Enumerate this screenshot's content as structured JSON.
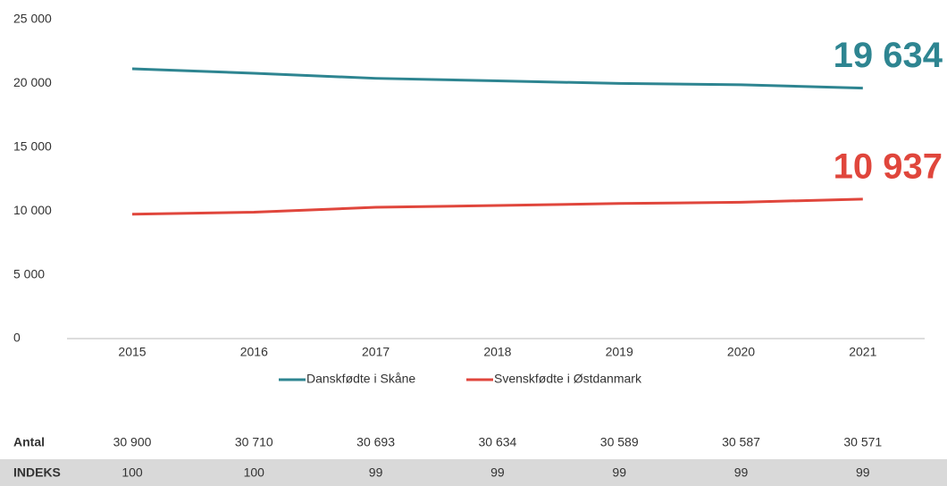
{
  "chart_data": {
    "type": "line",
    "categories": [
      "2015",
      "2016",
      "2017",
      "2018",
      "2019",
      "2020",
      "2021"
    ],
    "series": [
      {
        "name": "Danskfødte i Skåne",
        "color": "#2e8591",
        "values": [
          21150,
          20800,
          20400,
          20200,
          20000,
          19900,
          19634
        ],
        "value_labels": [
          null,
          null,
          null,
          null,
          null,
          null,
          "19 634"
        ]
      },
      {
        "name": "Svenskfødte i Østdanmark",
        "color": "#e0463c",
        "values": [
          9750,
          9910,
          10293,
          10434,
          10589,
          10687,
          10937
        ],
        "value_labels": [
          null,
          null,
          null,
          null,
          null,
          null,
          "10 937"
        ]
      }
    ],
    "ylim": [
      0,
      25000
    ],
    "yticks": [
      0,
      {
        "value": 5000,
        "label": "5 000"
      },
      {
        "value": 10000,
        "label": "10 000"
      },
      {
        "value": 15000,
        "label": "15 000"
      },
      {
        "value": 20000,
        "label": "20 000"
      },
      {
        "value": 25000,
        "label": "25 000"
      }
    ]
  },
  "table": {
    "rows": [
      [
        "Antal",
        "30 900",
        "30 710",
        "30 693",
        "30 634",
        "30 589",
        "30 587",
        "30 571"
      ],
      [
        "INDEKS",
        "100",
        "100",
        "99",
        "99",
        "99",
        "99",
        "99"
      ]
    ]
  }
}
